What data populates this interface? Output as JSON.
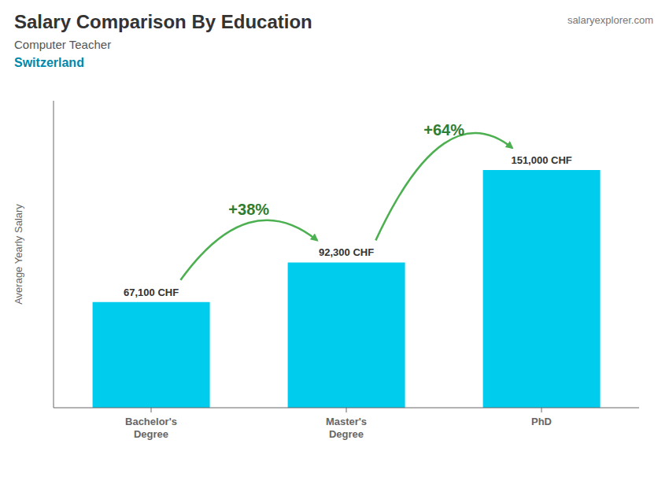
{
  "chart_data": {
    "type": "bar",
    "title": "Salary Comparison By Education",
    "subtitle": [
      "Computer Teacher",
      "Switzerland"
    ],
    "ylabel": "Average Yearly Salary",
    "categories": [
      "Bachelor's\nDegree",
      "Master's\nDegree",
      "PhD"
    ],
    "values": [
      67100,
      92300,
      151000
    ],
    "value_labels": [
      "67,100 CHF",
      "92,300 CHF",
      "151,000 CHF"
    ],
    "data_labels": true,
    "color": "#00ccee",
    "ylim": [
      0,
      195000
    ],
    "grid": false,
    "tick_labels": "x",
    "annotations": [
      {
        "text": "+38%",
        "between": [
          "Bachelor's\nDegree",
          "Master's\nDegree"
        ]
      },
      {
        "text": "+64%",
        "between": [
          "Master's\nDegree",
          "PhD"
        ]
      },
      {
        "text": "salaryexplorer.com"
      }
    ]
  }
}
